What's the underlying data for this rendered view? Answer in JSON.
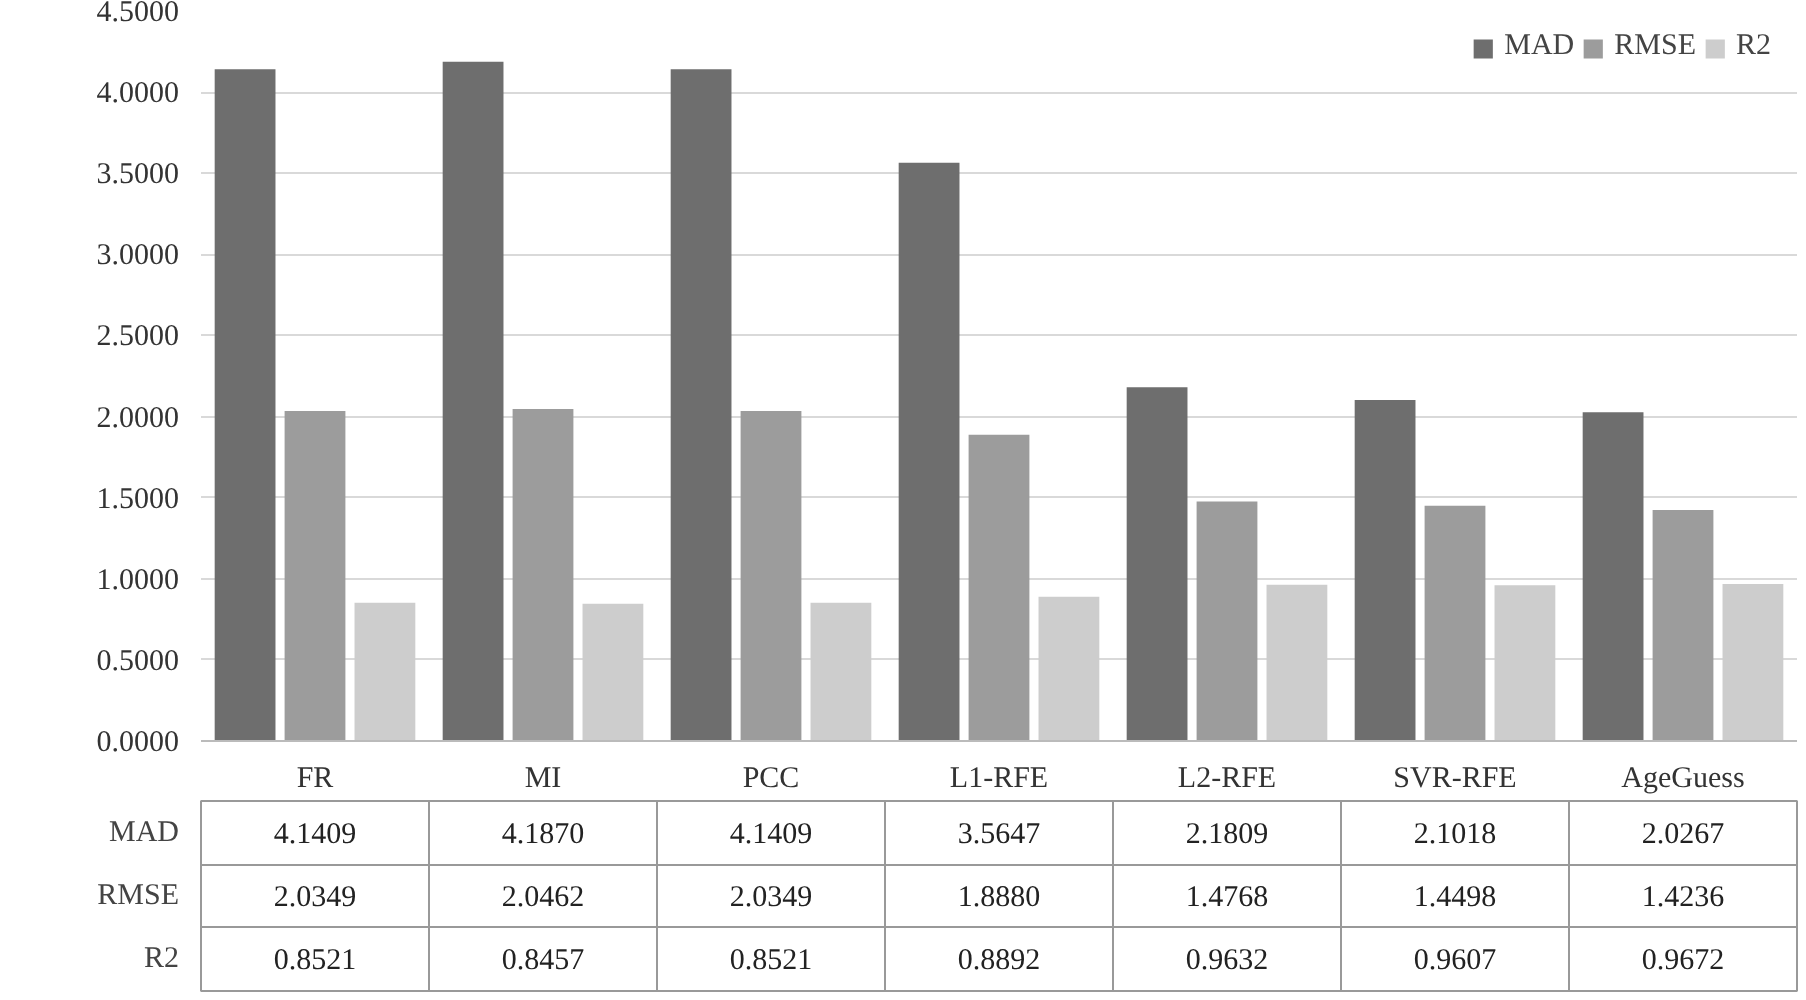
{
  "chart_data": {
    "type": "bar",
    "categories": [
      "FR",
      "MI",
      "PCC",
      "L1-RFE",
      "L2-RFE",
      "SVR-RFE",
      "AgeGuess"
    ],
    "series": [
      {
        "name": "MAD",
        "color": "#6e6e6e",
        "values": [
          4.1409,
          4.187,
          4.1409,
          3.5647,
          2.1809,
          2.1018,
          2.0267
        ],
        "value_labels": [
          "4.1409",
          "4.1870",
          "4.1409",
          "3.5647",
          "2.1809",
          "2.1018",
          "2.0267"
        ]
      },
      {
        "name": "RMSE",
        "color": "#9c9c9c",
        "values": [
          2.0349,
          2.0462,
          2.0349,
          1.888,
          1.4768,
          1.4498,
          1.4236
        ],
        "value_labels": [
          "2.0349",
          "2.0462",
          "2.0349",
          "1.8880",
          "1.4768",
          "1.4498",
          "1.4236"
        ]
      },
      {
        "name": "R2",
        "color": "#cdcdcd",
        "values": [
          0.8521,
          0.8457,
          0.8521,
          0.8892,
          0.9632,
          0.9607,
          0.9672
        ],
        "value_labels": [
          "0.8521",
          "0.8457",
          "0.8521",
          "0.8892",
          "0.9632",
          "0.9607",
          "0.9672"
        ]
      }
    ],
    "ylim": [
      0,
      4.5
    ],
    "yticks": [
      {
        "value": 0,
        "label": "0.0000"
      },
      {
        "value": 0.5,
        "label": "0.5000"
      },
      {
        "value": 1,
        "label": "1.0000"
      },
      {
        "value": 1.5,
        "label": "1.5000"
      },
      {
        "value": 2,
        "label": "2.0000"
      },
      {
        "value": 2.5,
        "label": "2.5000"
      },
      {
        "value": 3,
        "label": "3.0000"
      },
      {
        "value": 3.5,
        "label": "3.5000"
      },
      {
        "value": 4,
        "label": "4.0000"
      },
      {
        "value": 4.5,
        "label": "4.5000"
      }
    ],
    "grid": "y",
    "legend": "top right"
  }
}
